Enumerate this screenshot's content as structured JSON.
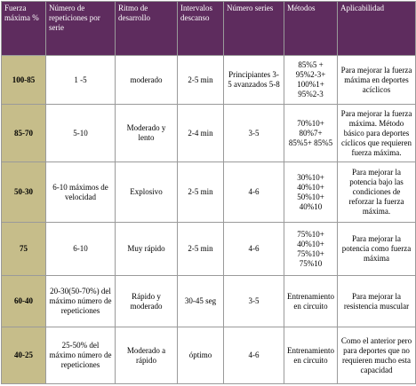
{
  "table": {
    "header": [
      "Fuerza máxima %",
      "Número de repeticiones por serie",
      "Ritmo de desarrollo",
      "Intervalos descanso",
      "Número series",
      "Métodos",
      "Aplicabilidad"
    ],
    "rows": [
      [
        "100-85",
        "1 -5",
        "moderado",
        "2-5 min",
        "Principiantes 3-5 avanzados 5-8",
        "85%5 + 95%2-3+ 100%1+ 95%2-3",
        "Para mejorar la fuerza máxima en deportes acíclicos"
      ],
      [
        "85-70",
        "5-10",
        "Moderado y lento",
        "2-4 min",
        "3-5",
        "70%10+ 80%7+ 85%5+ 85%5",
        "Para mejorar la fuerza máxima. Método básico para deportes cíclicos que requieren fuerza máxima."
      ],
      [
        "50-30",
        "6-10 máximos de velocidad",
        "Explosivo",
        "2-5 min",
        "4-6",
        "30%10+ 40%10+ 50%10+ 40%10",
        "Para mejorar la potencia bajo las condiciones de reforzar la fuerza máxima."
      ],
      [
        "75",
        "6-10",
        "Muy rápido",
        "2-5 min",
        "4-6",
        "75%10+ 40%10+ 75%10+ 75%10",
        "Para mejorar la potencia como fuerza máxima"
      ],
      [
        "60-40",
        "20-30(50-70%) del máximo número de repeticiones",
        "Rápido y moderado",
        "30-45 seg",
        "3-5",
        "Entrenamiento en circuito",
        "Para mejorar la resistencia muscular"
      ],
      [
        "40-25",
        "25-50% del máximo número de repeticiones",
        "Moderado a rápido",
        "óptimo",
        "4-6",
        "Entrenamiento en circuito",
        "Como el anterior pero para deportes que no requieren mucho esta capacidad"
      ]
    ]
  }
}
